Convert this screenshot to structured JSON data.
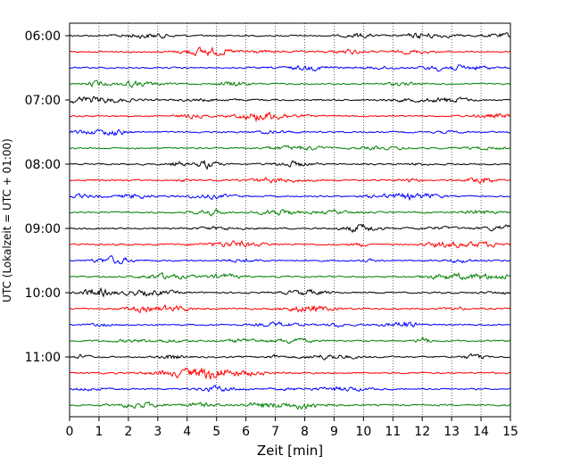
{
  "chart_data": {
    "type": "line",
    "xlabel": "Zeit  [min]",
    "ylabel": "UTC (Lokalzeit = UTC + 01:00)",
    "xlim": [
      0,
      15
    ],
    "x_ticks": [
      0,
      1,
      2,
      3,
      4,
      5,
      6,
      7,
      8,
      9,
      10,
      11,
      12,
      13,
      14,
      15
    ],
    "x_tick_labels": [
      "0",
      "1",
      "2",
      "3",
      "4",
      "5",
      "6",
      "7",
      "8",
      "9",
      "10",
      "11",
      "12",
      "13",
      "14",
      "15"
    ],
    "y_tick_labels": [
      "06:00",
      "07:00",
      "08:00",
      "09:00",
      "10:00",
      "11:00"
    ],
    "grid_x": true,
    "trace_colors": [
      "#000000",
      "#ff0000",
      "#0000ff",
      "#008000"
    ],
    "rows": [
      {
        "time": "06:00",
        "color": "#000000"
      },
      {
        "time": "06:15",
        "color": "#ff0000"
      },
      {
        "time": "06:30",
        "color": "#0000ff"
      },
      {
        "time": "06:45",
        "color": "#008000"
      },
      {
        "time": "07:00",
        "color": "#000000"
      },
      {
        "time": "07:15",
        "color": "#ff0000"
      },
      {
        "time": "07:30",
        "color": "#0000ff"
      },
      {
        "time": "07:45",
        "color": "#008000"
      },
      {
        "time": "08:00",
        "color": "#000000"
      },
      {
        "time": "08:15",
        "color": "#ff0000"
      },
      {
        "time": "08:30",
        "color": "#0000ff"
      },
      {
        "time": "08:45",
        "color": "#008000"
      },
      {
        "time": "09:00",
        "color": "#000000"
      },
      {
        "time": "09:15",
        "color": "#ff0000"
      },
      {
        "time": "09:30",
        "color": "#0000ff"
      },
      {
        "time": "09:45",
        "color": "#008000"
      },
      {
        "time": "10:00",
        "color": "#000000"
      },
      {
        "time": "10:15",
        "color": "#ff0000"
      },
      {
        "time": "10:30",
        "color": "#0000ff"
      },
      {
        "time": "10:45",
        "color": "#008000"
      },
      {
        "time": "11:00",
        "color": "#000000"
      },
      {
        "time": "11:15",
        "color": "#ff0000"
      },
      {
        "time": "11:30",
        "color": "#0000ff"
      },
      {
        "time": "11:45",
        "color": "#008000"
      }
    ]
  }
}
